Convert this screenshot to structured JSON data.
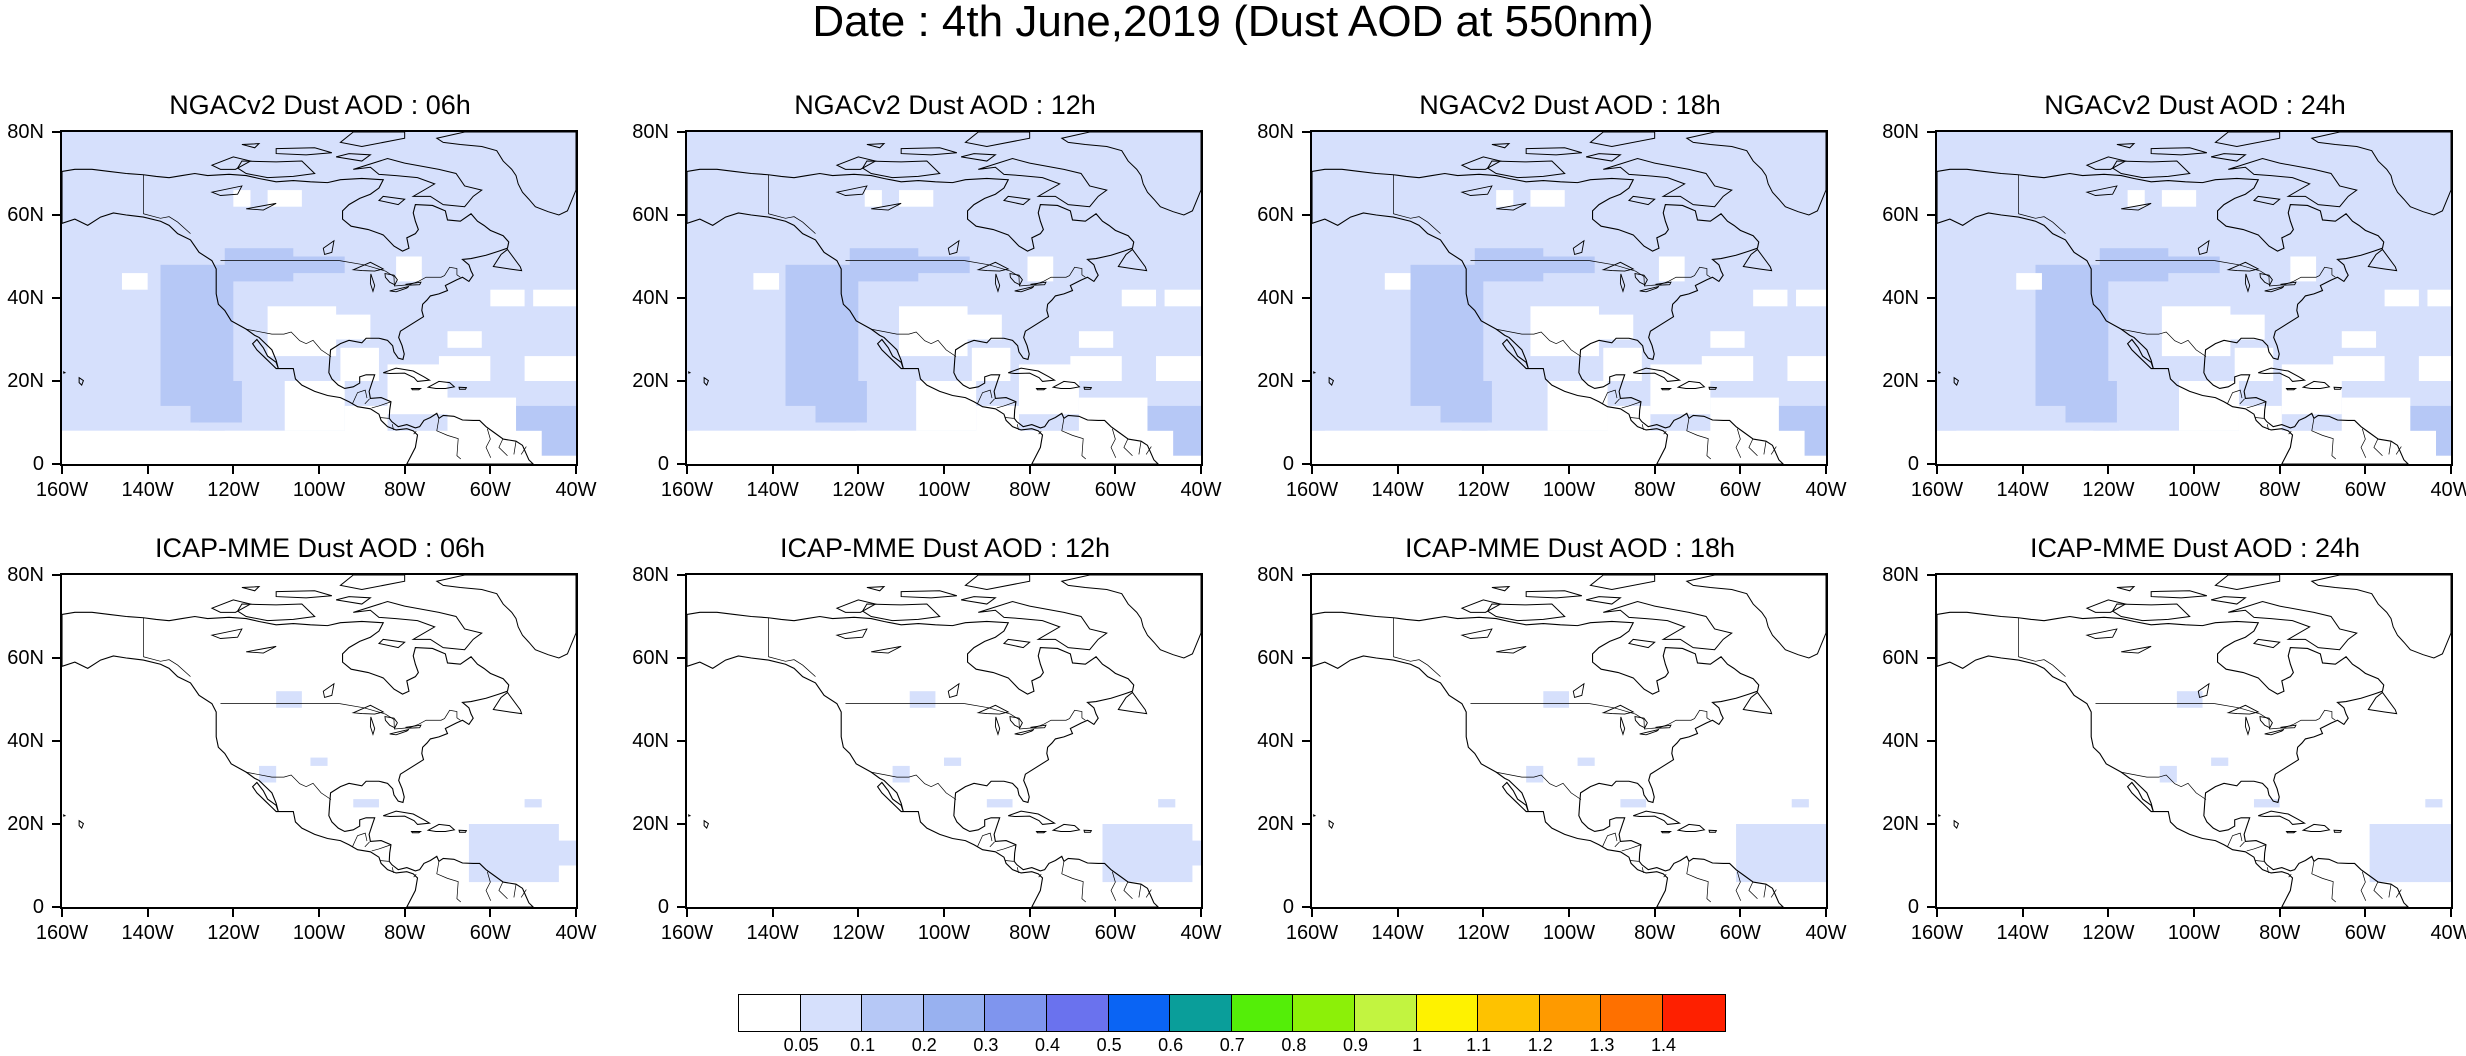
{
  "title": "Date : 4th June,2019 (Dust AOD at 550nm)",
  "lat_ticks": [
    "80N",
    "60N",
    "40N",
    "20N",
    "0"
  ],
  "lon_ticks": [
    "160W",
    "140W",
    "120W",
    "100W",
    "80W",
    "60W",
    "40W"
  ],
  "panels": [
    {
      "title": "NGACv2 Dust AOD : 06h",
      "model": "NGACv2",
      "hour": "06h",
      "coverage": "widespread"
    },
    {
      "title": "NGACv2 Dust AOD : 12h",
      "model": "NGACv2",
      "hour": "12h",
      "coverage": "widespread"
    },
    {
      "title": "NGACv2 Dust AOD : 18h",
      "model": "NGACv2",
      "hour": "18h",
      "coverage": "widespread"
    },
    {
      "title": "NGACv2 Dust AOD : 24h",
      "model": "NGACv2",
      "hour": "24h",
      "coverage": "widespread"
    },
    {
      "title": "ICAP-MME Dust AOD : 06h",
      "model": "ICAP-MME",
      "hour": "06h",
      "coverage": "sparse"
    },
    {
      "title": "ICAP-MME Dust AOD : 12h",
      "model": "ICAP-MME",
      "hour": "12h",
      "coverage": "sparse"
    },
    {
      "title": "ICAP-MME Dust AOD : 18h",
      "model": "ICAP-MME",
      "hour": "18h",
      "coverage": "sparse"
    },
    {
      "title": "ICAP-MME Dust AOD : 24h",
      "model": "ICAP-MME",
      "hour": "24h",
      "coverage": "sparse"
    }
  ],
  "colorbar": {
    "labels": [
      "0.05",
      "0.1",
      "0.2",
      "0.3",
      "0.4",
      "0.5",
      "0.6",
      "0.7",
      "0.8",
      "0.9",
      "1",
      "1.1",
      "1.2",
      "1.3",
      "1.4"
    ],
    "colors": [
      "#ffffff",
      "#d6e0fc",
      "#b6c8f6",
      "#98b1f0",
      "#7f95ee",
      "#6a72ee",
      "#0a64f4",
      "#0a9e9a",
      "#54ee08",
      "#8cf008",
      "#c2f440",
      "#fef200",
      "#fec200",
      "#fe9a00",
      "#fe7000",
      "#fe2000"
    ]
  },
  "map_colors": {
    "dust_low": "#d6e0fc",
    "dust_mid": "#b6c8f6",
    "coast": "#000000"
  }
}
